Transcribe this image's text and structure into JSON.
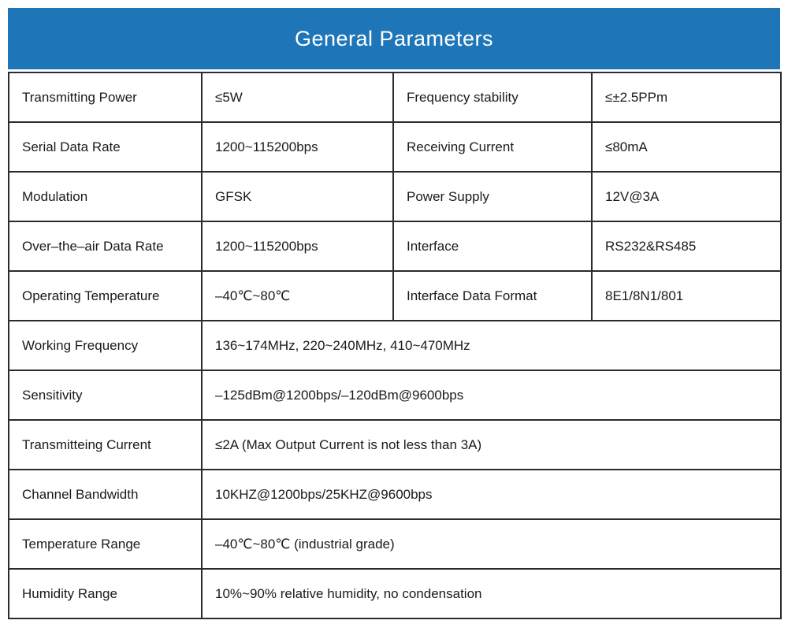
{
  "header": {
    "title": "General Parameters",
    "background_color": "#1e76b9",
    "text_color": "#ffffff"
  },
  "table": {
    "four_column_rows": [
      {
        "c0": "Transmitting Power",
        "c1": "≤5W",
        "c2": "Frequency stability",
        "c3": "≤±2.5PPm"
      },
      {
        "c0": "Serial Data Rate",
        "c1": "1200~115200bps",
        "c2": "Receiving Current",
        "c3": "≤80mA"
      },
      {
        "c0": "Modulation",
        "c1": "GFSK",
        "c2": "Power Supply",
        "c3": "12V@3A"
      },
      {
        "c0": "Over–the–air Data Rate",
        "c1": "1200~115200bps",
        "c2": "Interface",
        "c3": "RS232&RS485"
      },
      {
        "c0": "Operating Temperature",
        "c1": "–40℃~80℃",
        "c2": "Interface Data Format",
        "c3": "8E1/8N1/801"
      }
    ],
    "two_column_rows": [
      {
        "label": "Working Frequency",
        "value": "136~174MHz, 220~240MHz, 410~470MHz"
      },
      {
        "label": "Sensitivity",
        "value": "–125dBm@1200bps/–120dBm@9600bps"
      },
      {
        "label": "Transmitteing Current",
        "value": "≤2A (Max Output Current is not less than 3A)"
      },
      {
        "label": "Channel Bandwidth",
        "value": "10KHZ@1200bps/25KHZ@9600bps"
      },
      {
        "label": "Temperature Range",
        "value": "–40℃~80℃ (industrial grade)"
      },
      {
        "label": "Humidity Range",
        "value": "10%~90% relative humidity, no condensation"
      }
    ]
  }
}
